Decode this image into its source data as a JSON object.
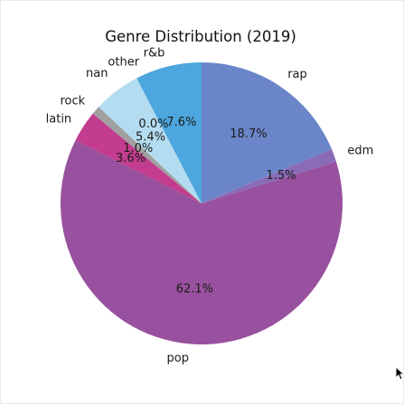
{
  "chart_data": {
    "type": "pie",
    "title": "Genre Distribution (2019)",
    "slices": [
      {
        "label": "rap",
        "value": 18.7,
        "pct_text": "18.7%",
        "color": "#6a86c8"
      },
      {
        "label": "edm",
        "value": 1.5,
        "pct_text": "1.5%",
        "color": "#8a6bb8"
      },
      {
        "label": "pop",
        "value": 62.1,
        "pct_text": "62.1%",
        "color": "#98519e"
      },
      {
        "label": "latin",
        "value": 3.6,
        "pct_text": "3.6%",
        "color": "#c23d8e"
      },
      {
        "label": "rock",
        "value": 1.0,
        "pct_text": "1.0%",
        "color": "#a0a0a0"
      },
      {
        "label": "nan",
        "value": 5.4,
        "pct_text": "5.4%",
        "color": "#b3dcf0"
      },
      {
        "label": "other",
        "value": 0.0,
        "pct_text": "0.0%",
        "color": "#86c7e6"
      },
      {
        "label": "r&b",
        "value": 7.6,
        "pct_text": "7.6%",
        "color": "#4da6de"
      }
    ],
    "start_angle": 90,
    "direction": "clockwise"
  }
}
